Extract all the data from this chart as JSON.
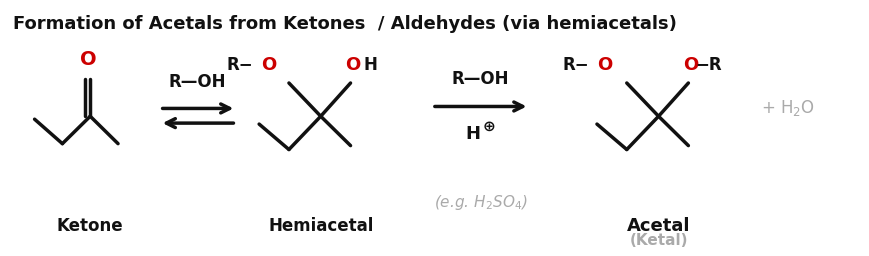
{
  "title": "Formation of Acetals from Ketones  / Aldehydes (via hemiacetals)",
  "title_fontsize": 13,
  "title_fontweight": "bold",
  "bg_color": "#ffffff",
  "black": "#111111",
  "red": "#cc0000",
  "gray": "#aaaaaa",
  "figsize": [
    8.7,
    2.56
  ],
  "dpi": 100,
  "ketone_label": "Ketone",
  "hemiacetal_label": "Hemiacetal",
  "acetal_label": "Acetal",
  "ketal_label": "(Ketal)"
}
